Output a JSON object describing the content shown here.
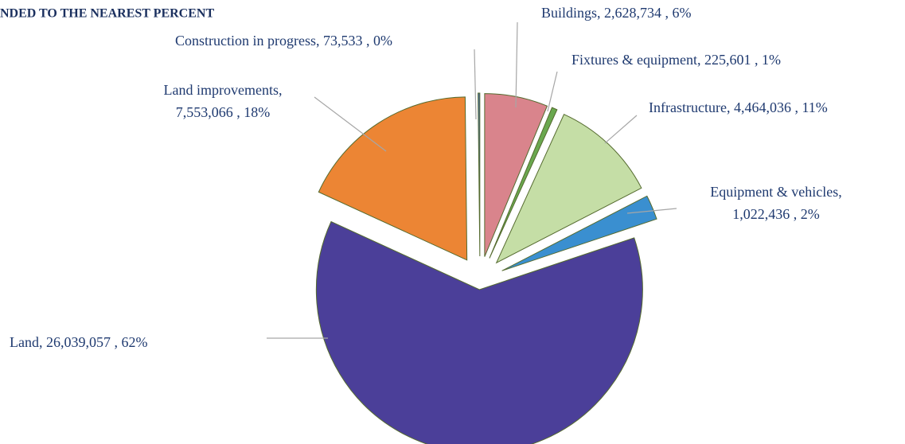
{
  "chart_data": {
    "type": "pie",
    "title": "NDED TO THE NEAREST PERCENT",
    "categories": [
      "Buildings",
      "Fixtures & equipment",
      "Infrastructure",
      "Equipment & vehicles",
      "Land",
      "Land improvements",
      "Construction in progress"
    ],
    "values": [
      2628734,
      225601,
      4464036,
      1022436,
      26039057,
      7553066,
      73533
    ],
    "labels": [
      [
        "Buildings, 2,628,734 , 6%"
      ],
      [
        "Fixtures & equipment, 225,601 , 1%"
      ],
      [
        "Infrastructure, 4,464,036 , 11%"
      ],
      [
        "Equipment & vehicles,",
        "1,022,436 , 2%"
      ],
      [
        "Land, 26,039,057 , 62%"
      ],
      [
        "Land improvements,",
        "7,553,066 , 18%"
      ],
      [
        "Construction in progress, 73,533 , 0%"
      ]
    ],
    "colors": [
      "#d9848c",
      "#6aa84f",
      "#c5dea6",
      "#3a8fd0",
      "#4b3f99",
      "#ec8534",
      "#4f6fa8"
    ]
  }
}
